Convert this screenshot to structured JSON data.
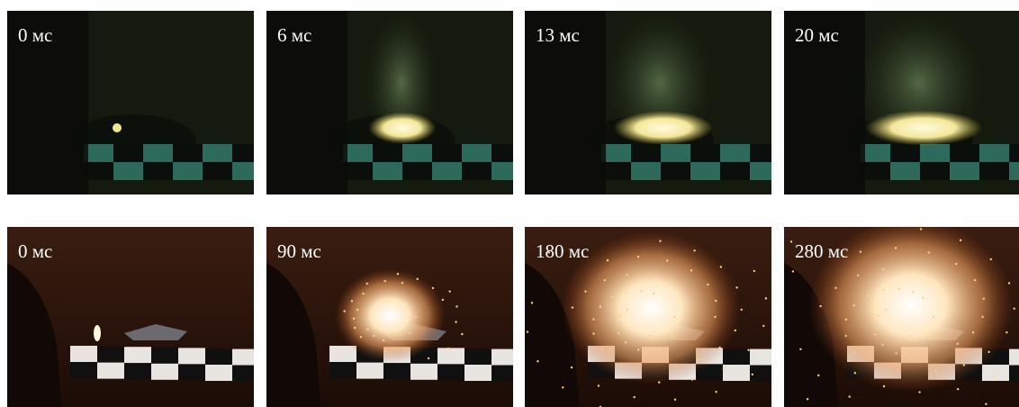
{
  "rows": [
    {
      "frames": [
        {
          "label": "0 мс"
        },
        {
          "label": "6 мс"
        },
        {
          "label": "13 мс"
        },
        {
          "label": "20 мс"
        }
      ]
    },
    {
      "frames": [
        {
          "label": "0 мс"
        },
        {
          "label": "90 мс"
        },
        {
          "label": "180 мс"
        },
        {
          "label": "280 мс"
        }
      ]
    }
  ]
}
